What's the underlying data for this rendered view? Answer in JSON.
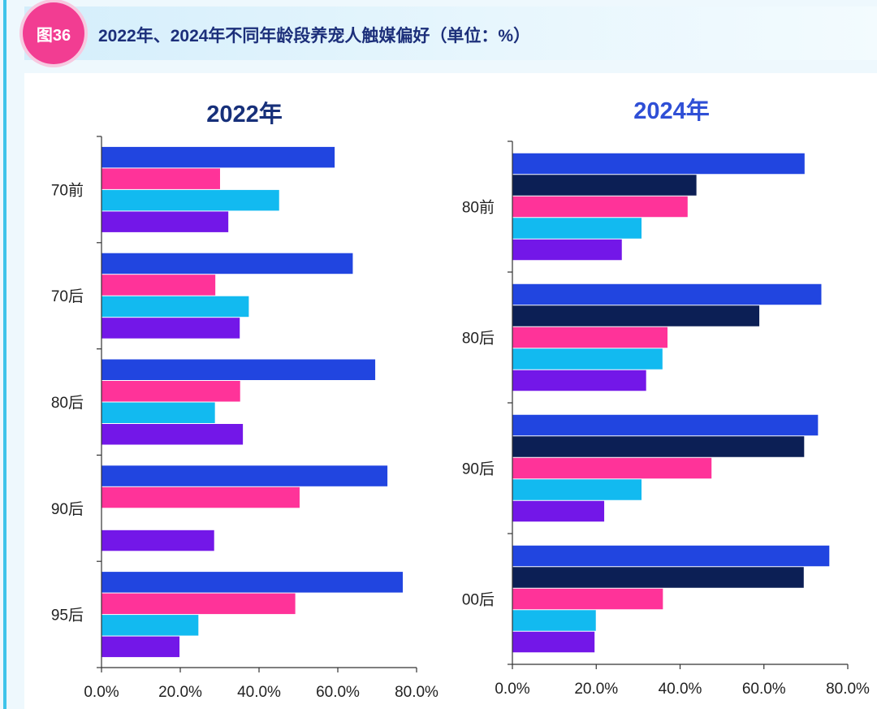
{
  "header": {
    "badge": "图36",
    "title": "2022年、2024年不同年龄段养宠人触媒偏好（单位：%）"
  },
  "colors": {
    "badge": "#f23d92",
    "title": "#1c2f7a",
    "series": [
      "#2145e0",
      "#0c1f55",
      "#ff3399",
      "#12baf0",
      "#7317e8"
    ]
  },
  "chart_data": [
    {
      "type": "bar",
      "orientation": "horizontal",
      "title": "2022年",
      "title_color": "#17307a",
      "categories": [
        "70前",
        "70后",
        "80后",
        "90后",
        "95后"
      ],
      "series": [
        {
          "color": "#2145e0",
          "values": [
            59.2,
            63.8,
            69.5,
            72.6,
            76.5
          ]
        },
        {
          "color": "#ff3399",
          "values": [
            30.1,
            28.9,
            35.2,
            50.3,
            49.2
          ]
        },
        {
          "color": "#12baf0",
          "values": [
            45.1,
            37.4,
            28.8,
            null,
            24.6
          ]
        },
        {
          "color": "#7317e8",
          "values": [
            32.2,
            35.1,
            35.9,
            28.6,
            19.8
          ]
        }
      ],
      "xlim": [
        0,
        80
      ],
      "xticks": [
        "0.0%",
        "20.0%",
        "40.0%",
        "60.0%",
        "80.0%"
      ],
      "grid": false,
      "legend": "none"
    },
    {
      "type": "bar",
      "orientation": "horizontal",
      "title": "2024年",
      "title_color": "#2f4fd6",
      "categories": [
        "80前",
        "80后",
        "90后",
        "00后"
      ],
      "series": [
        {
          "color": "#2145e0",
          "values": [
            69.7,
            73.7,
            72.9,
            75.6
          ]
        },
        {
          "color": "#0c1f55",
          "values": [
            43.9,
            58.9,
            69.6,
            69.5
          ]
        },
        {
          "color": "#ff3399",
          "values": [
            41.8,
            37.0,
            47.5,
            35.9
          ]
        },
        {
          "color": "#12baf0",
          "values": [
            30.8,
            35.8,
            30.8,
            19.9
          ]
        },
        {
          "color": "#7317e8",
          "values": [
            26.1,
            31.9,
            21.9,
            19.6
          ]
        }
      ],
      "xlim": [
        0,
        80
      ],
      "xticks": [
        "0.0%",
        "20.0%",
        "40.0%",
        "60.0%",
        "80.0%"
      ],
      "grid": false,
      "legend": "none"
    }
  ]
}
